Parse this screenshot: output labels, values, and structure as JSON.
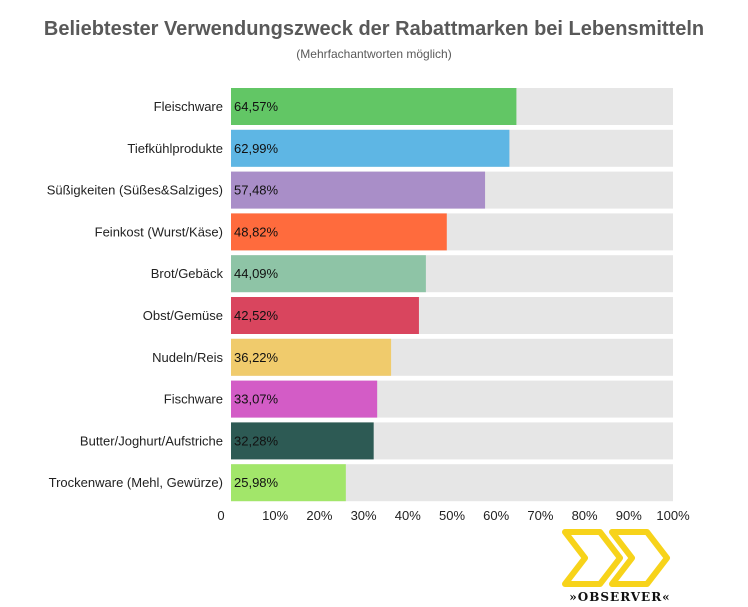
{
  "colors": {
    "track": "#e6e6e6",
    "bars": [
      "#62c665",
      "#5eb6e4",
      "#a98ec8",
      "#ff6b3d",
      "#8ec4a6",
      "#d9455e",
      "#f0cb6c",
      "#d35cc6",
      "#2d5a54",
      "#a2e66a"
    ],
    "logo": "#f7d31a"
  },
  "chart_data": {
    "type": "bar",
    "orientation": "horizontal",
    "title": "Beliebtester Verwendungszweck der Rabattmarken bei Lebensmitteln",
    "subtitle": "(Mehrfachantworten möglich)",
    "categories": [
      "Fleischware",
      "Tiefkühlprodukte",
      "Süßigkeiten (Süßes&Salziges)",
      "Feinkost (Wurst/Käse)",
      "Brot/Gebäck",
      "Obst/Gemüse",
      "Nudeln/Reis",
      "Fischware",
      "Butter/Joghurt/Aufstriche",
      "Trockenware (Mehl, Gewürze)"
    ],
    "values": [
      64.57,
      62.99,
      57.48,
      48.82,
      44.09,
      42.52,
      36.22,
      33.07,
      32.28,
      25.98
    ],
    "value_labels": [
      "64,57%",
      "62,99%",
      "57,48%",
      "48,82%",
      "44,09%",
      "42,52%",
      "36,22%",
      "33,07%",
      "32,28%",
      "25,98%"
    ],
    "xlim": [
      0,
      100
    ],
    "x_ticks": [
      0,
      10,
      20,
      30,
      40,
      50,
      60,
      70,
      80,
      90,
      100
    ],
    "x_tick_labels": [
      "0",
      "10%",
      "20%",
      "30%",
      "40%",
      "50%",
      "60%",
      "70%",
      "80%",
      "90%",
      "100%"
    ],
    "xlabel": "",
    "ylabel": ""
  },
  "logo": {
    "text": "»OBSERVER«"
  }
}
